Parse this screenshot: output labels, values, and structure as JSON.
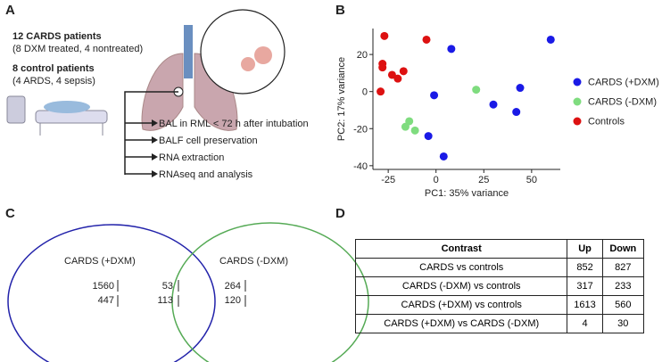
{
  "panels": {
    "a": "A",
    "b": "B",
    "c": "C",
    "d": "D"
  },
  "panel_a": {
    "cards_patients": "12 CARDS patients",
    "cards_detail": "(8 DXM treated, 4 nontreated)",
    "control_patients": "8 control patients",
    "control_detail": "(4 ARDS, 4 sepsis)",
    "steps": [
      "BAL in RML < 72 h after intubation",
      "BALF cell preservation",
      "RNA extraction",
      "RNAseq and analysis"
    ]
  },
  "chart_data": {
    "type": "scatter",
    "x_label": "PC1: 35% variance",
    "y_label": "PC2: 17% variance",
    "xlim": [
      -33,
      65
    ],
    "ylim": [
      -42,
      34
    ],
    "xticks": [
      -25,
      0,
      25,
      50
    ],
    "yticks": [
      -40,
      -20,
      0,
      20
    ],
    "series": [
      {
        "name": "CARDS (+DXM)",
        "color": "#1a1ae6",
        "x": [
          8,
          -1,
          30,
          44,
          42,
          -4,
          4,
          60
        ],
        "values": [
          23,
          -2,
          -7,
          2,
          -11,
          -24,
          -35,
          28
        ]
      },
      {
        "name": "CARDS (-DXM)",
        "color": "#7fdc7f",
        "x": [
          21,
          -14,
          -16,
          -11
        ],
        "values": [
          1,
          -16,
          -19,
          -21
        ]
      },
      {
        "name": "Controls",
        "color": "#dd1111",
        "x": [
          -27,
          -28,
          -28,
          -23,
          -17,
          -20,
          -29,
          -5
        ],
        "values": [
          30,
          15,
          13,
          9,
          11,
          7,
          0,
          28
        ]
      }
    ]
  },
  "venn": {
    "left": {
      "label": "CARDS (+DXM)",
      "up": "1560",
      "down": "447"
    },
    "overlap": {
      "up": "53",
      "down": "113"
    },
    "right": {
      "label": "CARDS (-DXM)",
      "up": "264",
      "down": "120"
    }
  },
  "table": {
    "header": [
      "Contrast",
      "Up",
      "Down"
    ],
    "rows": [
      [
        "CARDS vs controls",
        "852",
        "827"
      ],
      [
        "CARDS (-DXM) vs controls",
        "317",
        "233"
      ],
      [
        "CARDS (+DXM) vs controls",
        "1613",
        "560"
      ],
      [
        "CARDS (+DXM) vs CARDS (-DXM)",
        "4",
        "30"
      ]
    ]
  }
}
